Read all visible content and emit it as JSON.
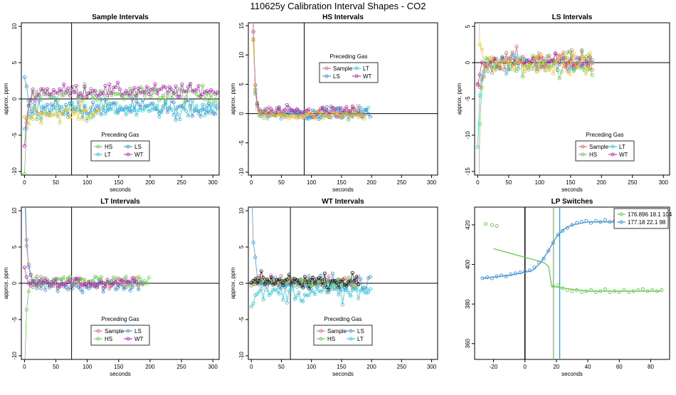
{
  "main_title": "110625y   Calibration Interval Shapes - CO2",
  "colors": {
    "Sample": "#e8606f",
    "HS": "#63c84a",
    "LS": "#3a8fd6",
    "LT": "#2fc4d6",
    "WT": "#b02cb0",
    "Black": "#111111",
    "Gold": "#f0c020"
  },
  "chart_data": [
    {
      "type": "scatter",
      "title": "Sample Intervals",
      "xlabel": "seconds",
      "ylabel": "approx. ppm",
      "xlim": [
        -5,
        310
      ],
      "ylim": [
        -10.5,
        10.5
      ],
      "xticks": [
        0,
        50,
        100,
        150,
        200,
        250,
        300
      ],
      "yticks": [
        -10,
        -5,
        0,
        5,
        10
      ],
      "vline": 75,
      "hline": 0,
      "legend": {
        "title": "Preceding Gas",
        "entries": [
          "HS",
          "LS",
          "LT",
          "WT"
        ],
        "position": "center-bottom"
      },
      "series": [
        {
          "name": "HS",
          "color": "HS",
          "x_end": 310,
          "level": 0.6,
          "noise": 1.2,
          "start": -11,
          "steep": 4
        },
        {
          "name": "LS",
          "color": "LS",
          "x_end": 310,
          "level": -1.3,
          "noise": 1.2,
          "start": 3.8,
          "steep": 5
        },
        {
          "name": "LT",
          "color": "LT",
          "x_end": 310,
          "level": -1.5,
          "noise": 1.1,
          "start": -4,
          "steep": 6
        },
        {
          "name": "WT",
          "color": "WT",
          "x_end": 310,
          "level": 1.1,
          "noise": 0.9,
          "start": -6,
          "steep": 5
        },
        {
          "name": "",
          "color": "Gold",
          "x_end": 120,
          "level": -2.0,
          "noise": 1.0,
          "start": -3,
          "steep": 8
        }
      ]
    },
    {
      "type": "scatter",
      "title": "HS Intervals",
      "xlabel": "seconds",
      "ylabel": "approx. ppm",
      "xlim": [
        -5,
        310
      ],
      "ylim": [
        -10.5,
        15.5
      ],
      "xticks": [
        0,
        50,
        100,
        150,
        200,
        250,
        300
      ],
      "yticks": [
        -10,
        -5,
        0,
        5,
        10,
        15
      ],
      "vline": 88,
      "hline": 0,
      "legend": {
        "title": "Preceding Gas",
        "entries": [
          "Sample",
          "LT",
          "LS",
          "WT"
        ],
        "position": "top-center"
      },
      "series": [
        {
          "name": "Sample",
          "color": "Sample",
          "x_end": 190,
          "level": 0.1,
          "noise": 1.0,
          "start": 40,
          "steep": 3
        },
        {
          "name": "LT",
          "color": "LT",
          "x_end": 195,
          "level": -0.1,
          "noise": 1.0,
          "start": 40,
          "steep": 3
        },
        {
          "name": "LS",
          "color": "LS",
          "x_end": 200,
          "level": 0.0,
          "noise": 1.0,
          "start": 40,
          "steep": 3
        },
        {
          "name": "WT",
          "color": "WT",
          "x_end": 180,
          "level": 0.2,
          "noise": 1.0,
          "start": 40,
          "steep": 3
        },
        {
          "name": "",
          "color": "Gold",
          "x_end": 190,
          "level": -0.4,
          "noise": 0.9,
          "start": 40,
          "steep": 3
        }
      ]
    },
    {
      "type": "scatter",
      "title": "LS Intervals",
      "xlabel": "seconds",
      "ylabel": "approx. ppm",
      "xlim": [
        -5,
        310
      ],
      "ylim": [
        -15.5,
        5.5
      ],
      "xticks": [
        0,
        50,
        100,
        150,
        200,
        250,
        300
      ],
      "yticks": [
        -15,
        -10,
        -5,
        0,
        5
      ],
      "vline": null,
      "hline": 0,
      "legend": {
        "title": "Preceding Gas",
        "entries": [
          "Sample",
          "LT",
          "HS",
          "WT"
        ],
        "position": "center-right"
      },
      "series": [
        {
          "name": "Sample",
          "color": "Sample",
          "x_end": 185,
          "level": 0.3,
          "noise": 1.5,
          "start": -4,
          "steep": 7
        },
        {
          "name": "LT",
          "color": "LT",
          "x_end": 185,
          "level": -0.1,
          "noise": 1.2,
          "start": -12,
          "steep": 3
        },
        {
          "name": "HS",
          "color": "HS",
          "x_end": 185,
          "level": -0.2,
          "noise": 1.6,
          "start": -30,
          "steep": 2.5
        },
        {
          "name": "WT",
          "color": "WT",
          "x_end": 185,
          "level": 0.1,
          "noise": 1.0,
          "start": -3,
          "steep": 6
        },
        {
          "name": "",
          "color": "Gold",
          "x_end": 185,
          "level": 0.0,
          "noise": 1.2,
          "start": 12,
          "steep": 2.5
        }
      ]
    },
    {
      "type": "scatter",
      "title": "LT Intervals",
      "xlabel": "seconds",
      "ylabel": "approx. ppm",
      "xlim": [
        -5,
        310
      ],
      "ylim": [
        -10.5,
        10.5
      ],
      "xticks": [
        0,
        50,
        100,
        150,
        200,
        250,
        300
      ],
      "yticks": [
        -10,
        -5,
        0,
        5,
        10
      ],
      "vline": 75,
      "hline": 0,
      "legend": {
        "title": "Preceding Gas",
        "entries": [
          "Sample",
          "LS",
          "HS",
          "WT"
        ],
        "position": "center-bottom"
      },
      "series": [
        {
          "name": "Sample",
          "color": "Sample",
          "x_end": 190,
          "level": 0.0,
          "noise": 0.8,
          "start": 12,
          "steep": 4
        },
        {
          "name": "LS",
          "color": "LS",
          "x_end": 190,
          "level": -0.2,
          "noise": 1.0,
          "start": 14,
          "steep": 4
        },
        {
          "name": "HS",
          "color": "HS",
          "x_end": 200,
          "level": 0.3,
          "noise": 0.8,
          "start": -12,
          "steep": 3
        },
        {
          "name": "WT",
          "color": "WT",
          "x_end": 180,
          "level": 0.0,
          "noise": 0.7,
          "start": 2,
          "steep": 4
        }
      ]
    },
    {
      "type": "scatter",
      "title": "WT Intervals",
      "xlabel": "seconds",
      "ylabel": "approx. ppm",
      "xlim": [
        -5,
        310
      ],
      "ylim": [
        -10.5,
        10.5
      ],
      "xticks": [
        0,
        50,
        100,
        150,
        200,
        250,
        300
      ],
      "yticks": [
        -10,
        -5,
        0,
        5,
        10
      ],
      "vline": 65,
      "hline": 0,
      "legend": {
        "title": "Preceding Gas",
        "entries": [
          "Sample",
          "LS",
          "HS",
          "LT"
        ],
        "position": "center-bottom"
      },
      "series": [
        {
          "name": "Sample",
          "color": "Sample",
          "x_end": 180,
          "level": 0.3,
          "noise": 0.8,
          "start": 0,
          "steep": 4
        },
        {
          "name": "LS",
          "color": "LS",
          "x_end": 200,
          "level": 0.0,
          "noise": 1.0,
          "start": 14,
          "steep": 4
        },
        {
          "name": "HS",
          "color": "HS",
          "x_end": 180,
          "level": 0.2,
          "noise": 0.8,
          "start": 0,
          "steep": 4
        },
        {
          "name": "LT",
          "color": "LT",
          "x_end": 200,
          "level": -1.3,
          "noise": 1.2,
          "start": -4,
          "steep": 4
        },
        {
          "name": "",
          "color": "Black",
          "x_end": 180,
          "level": 0.3,
          "noise": 0.9,
          "start": 0,
          "steep": 4
        }
      ]
    },
    {
      "type": "scatter",
      "title": "LP Switches",
      "xlabel": "seconds",
      "ylabel": "",
      "xlim": [
        -32,
        92
      ],
      "ylim": [
        352,
        429
      ],
      "xticks": [
        -20,
        0,
        20,
        40,
        60,
        80
      ],
      "yticks": [
        360,
        380,
        400,
        420
      ],
      "vlines": [
        {
          "x": 0,
          "color": "Black"
        },
        {
          "x": 18.1,
          "color": "HS"
        },
        {
          "x": 22.1,
          "color": "LS"
        }
      ],
      "legend": {
        "title": "",
        "entries": [
          "176.896 18.1 104",
          "177.18 22.1 98"
        ],
        "colors": [
          "HS",
          "LS"
        ],
        "position": "top-right"
      },
      "series": [
        {
          "name": "176.896 18.1 104",
          "color": "HS",
          "points": [
            [
              -25,
              420.5
            ],
            [
              -21,
              420
            ],
            [
              -18,
              419.5
            ],
            [
              18,
              389
            ],
            [
              21,
              389.5
            ],
            [
              24,
              388
            ],
            [
              27,
              387
            ],
            [
              30,
              386.5
            ],
            [
              33,
              387
            ],
            [
              36,
              386
            ],
            [
              39,
              386.5
            ],
            [
              42,
              387
            ],
            [
              45,
              386
            ],
            [
              48,
              386.5
            ],
            [
              51,
              387.5
            ],
            [
              54,
              386
            ],
            [
              57,
              386.5
            ],
            [
              60,
              386
            ],
            [
              63,
              387
            ],
            [
              66,
              386
            ],
            [
              69,
              386.5
            ],
            [
              72,
              387
            ],
            [
              75,
              387.5
            ],
            [
              78,
              386.5
            ],
            [
              81,
              387
            ],
            [
              84,
              386.5
            ],
            [
              87,
              387
            ]
          ],
          "line": [
            [
              -20,
              408
            ],
            [
              12,
              401
            ],
            [
              15,
              399
            ],
            [
              17,
              389
            ],
            [
              25,
              388
            ],
            [
              40,
              386.5
            ],
            [
              60,
              386.5
            ],
            [
              87,
              386.5
            ]
          ]
        },
        {
          "name": "177.18 22.1 98",
          "color": "LS",
          "points": [
            [
              -27,
              393
            ],
            [
              -24,
              393.5
            ],
            [
              -21,
              393
            ],
            [
              -18,
              394
            ],
            [
              -15,
              394.5
            ],
            [
              -12,
              394
            ],
            [
              -9,
              395
            ],
            [
              -6,
              395.5
            ],
            [
              -3,
              396
            ],
            [
              0,
              396.5
            ],
            [
              3,
              397
            ],
            [
              6,
              398.5
            ],
            [
              9,
              401
            ],
            [
              12,
              403
            ],
            [
              15,
              407
            ],
            [
              18,
              411
            ],
            [
              21,
              415
            ],
            [
              24,
              417
            ],
            [
              27,
              418.5
            ],
            [
              30,
              420
            ],
            [
              33,
              421
            ],
            [
              36,
              421.5
            ],
            [
              39,
              422
            ],
            [
              42,
              421
            ],
            [
              45,
              422
            ],
            [
              48,
              421.5
            ],
            [
              51,
              422.5
            ],
            [
              54,
              421.5
            ],
            [
              57,
              422
            ],
            [
              60,
              421
            ],
            [
              63,
              421.5
            ],
            [
              66,
              422
            ]
          ],
          "line": [
            [
              -27,
              393
            ],
            [
              -10,
              394.5
            ],
            [
              0,
              396
            ],
            [
              5,
              397
            ],
            [
              10,
              401
            ],
            [
              15,
              407
            ],
            [
              20,
              414
            ],
            [
              25,
              418
            ],
            [
              30,
              420
            ],
            [
              40,
              421.5
            ],
            [
              66,
              421.5
            ]
          ]
        }
      ]
    }
  ]
}
